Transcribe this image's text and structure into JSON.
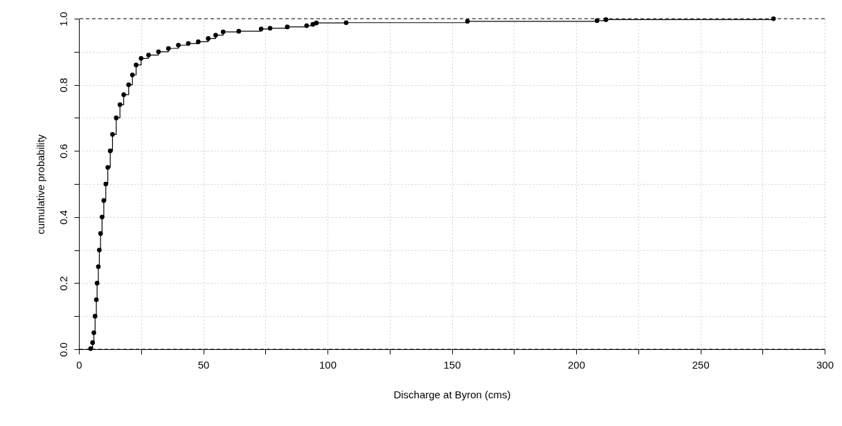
{
  "chart_data": {
    "type": "step",
    "xlabel": "Discharge at Byron (cms)",
    "ylabel": "cumulative probability",
    "xlim": [
      0,
      300
    ],
    "ylim": [
      0,
      1
    ],
    "xticks": [
      0,
      {
        "value": 25,
        "label": null
      },
      50,
      {
        "value": 75,
        "label": null
      },
      100,
      {
        "value": 125,
        "label": null
      },
      150,
      {
        "value": 175,
        "label": null
      },
      200,
      {
        "value": 225,
        "label": null
      },
      250,
      {
        "value": 275,
        "label": null
      },
      300
    ],
    "yticks": [
      {
        "value": 0,
        "label": "0.0"
      },
      {
        "value": 0.1,
        "label": null
      },
      0.2,
      {
        "value": 0.3,
        "label": null
      },
      0.4,
      {
        "value": 0.5,
        "label": null
      },
      0.6,
      {
        "value": 0.7,
        "label": null
      },
      0.8,
      {
        "value": 0.9,
        "label": null
      },
      {
        "value": 1,
        "label": "1.0"
      }
    ],
    "grid": true,
    "marker": "circle",
    "line_style": "solid",
    "ref_lines": [
      {
        "axis": "y",
        "value": 0,
        "line_style": "dashed"
      },
      {
        "axis": "y",
        "value": 1,
        "line_style": "dashed"
      }
    ],
    "series": [
      {
        "color": "#000000",
        "x": [
          4.7,
          5.5,
          6,
          6.5,
          7,
          7.3,
          7.8,
          8.2,
          8.7,
          9.3,
          10,
          10.8,
          11.6,
          12.6,
          13.5,
          15,
          16.5,
          18,
          20,
          21.5,
          23,
          25,
          28,
          32,
          36,
          40,
          44,
          48,
          52,
          55,
          58,
          64.3,
          73.3,
          76.9,
          83.8,
          91.6,
          94.1,
          95.5,
          107.5,
          156.3,
          208.4,
          212,
          279.4
        ],
        "values": [
          0.002,
          0.02,
          0.05,
          0.1,
          0.15,
          0.2,
          0.25,
          0.3,
          0.35,
          0.4,
          0.45,
          0.5,
          0.55,
          0.6,
          0.65,
          0.7,
          0.74,
          0.77,
          0.8,
          0.83,
          0.86,
          0.88,
          0.89,
          0.9,
          0.91,
          0.92,
          0.925,
          0.93,
          0.94,
          0.95,
          0.96,
          0.962,
          0.969,
          0.971,
          0.975,
          0.979,
          0.983,
          0.987,
          0.988,
          0.992,
          0.994,
          0.997,
          1.0
        ]
      }
    ]
  }
}
